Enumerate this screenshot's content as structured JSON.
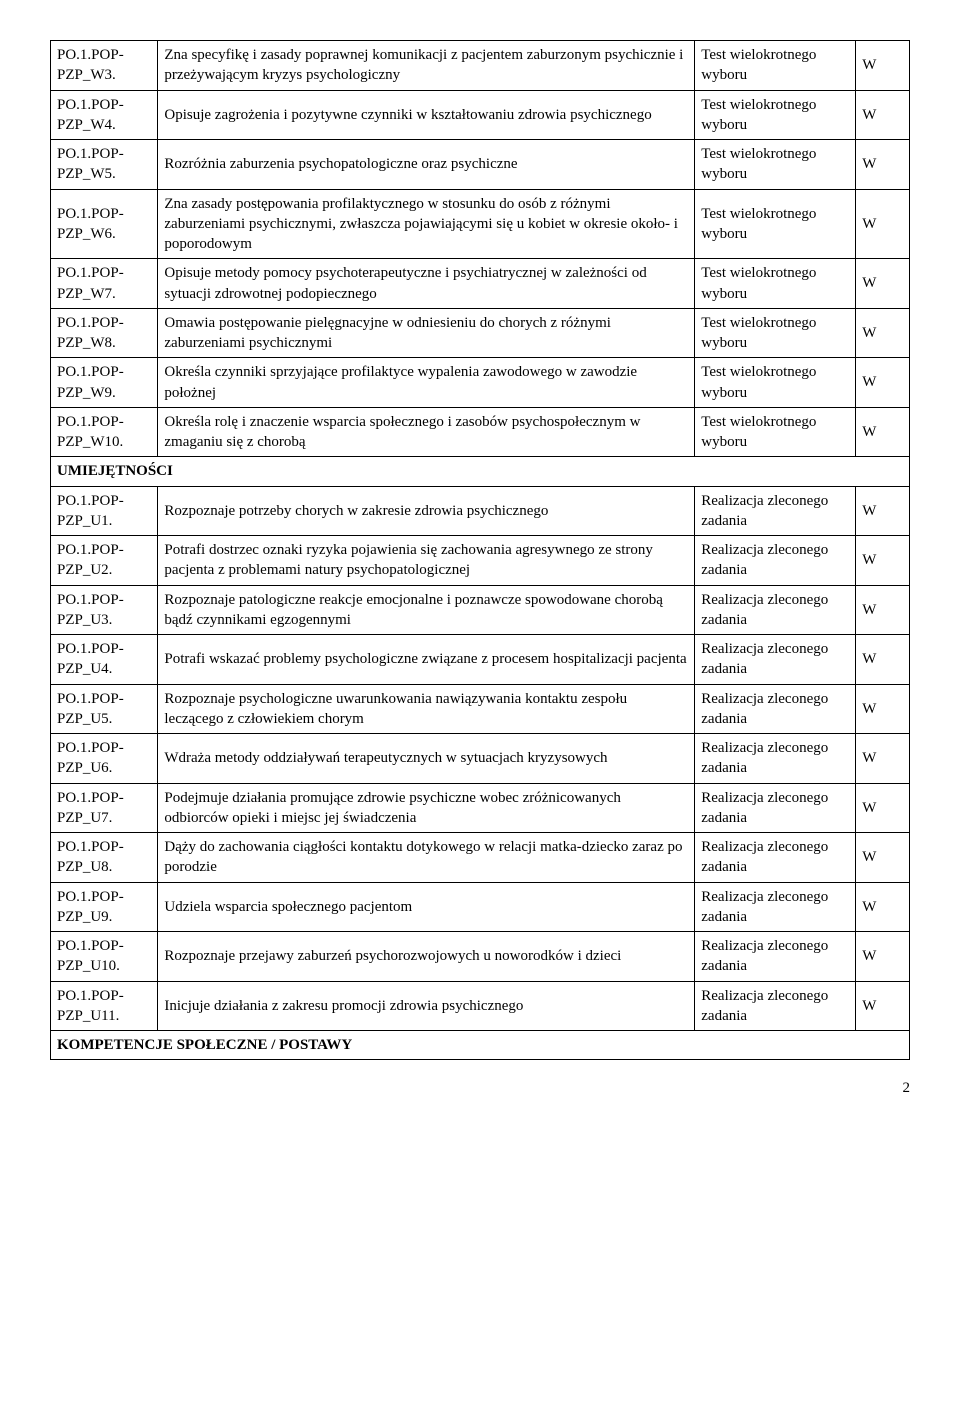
{
  "sections": {
    "skills_header": "UMIEJĘTNOŚCI",
    "competencies_header": "KOMPETENCJE SPOŁECZNE / POSTAWY"
  },
  "test_method": "Test wielokrotnego wyboru",
  "task_method": "Realizacja zleconego zadania",
  "flag": "W",
  "page_number": "2",
  "rows_w": [
    {
      "code": "PO.1.POP-PZP_W3.",
      "desc": "Zna specyfikę i zasady poprawnej komunikacji z pacjentem zaburzonym psychicznie i przeżywającym kryzys psychologiczny"
    },
    {
      "code": "PO.1.POP-PZP_W4.",
      "desc": "Opisuje zagrożenia i pozytywne czynniki w kształtowaniu zdrowia psychicznego"
    },
    {
      "code": "PO.1.POP-PZP_W5.",
      "desc": "Rozróżnia zaburzenia psychopatologiczne oraz psychiczne"
    },
    {
      "code": "PO.1.POP-PZP_W6.",
      "desc": "Zna zasady postępowania profilaktycznego w stosunku do osób z różnymi zaburzeniami psychicznymi, zwłaszcza pojawiającymi się u kobiet w okresie około- i poporodowym"
    },
    {
      "code": "PO.1.POP-PZP_W7.",
      "desc": "Opisuje metody pomocy psychoterapeutyczne i psychiatrycznej w zależności od sytuacji zdrowotnej podopiecznego"
    },
    {
      "code": "PO.1.POP-PZP_W8.",
      "desc": "Omawia postępowanie pielęgnacyjne w odniesieniu do chorych z różnymi zaburzeniami psychicznymi"
    },
    {
      "code": "PO.1.POP-PZP_W9.",
      "desc": "Określa czynniki sprzyjające profilaktyce wypalenia zawodowego w zawodzie położnej"
    },
    {
      "code": "PO.1.POP-PZP_W10.",
      "desc": "Określa rolę i znaczenie wsparcia społecznego i zasobów psychospołecznym w zmaganiu się z chorobą"
    }
  ],
  "rows_u": [
    {
      "code": "PO.1.POP-PZP_U1.",
      "desc": "Rozpoznaje potrzeby chorych w zakresie zdrowia psychicznego"
    },
    {
      "code": "PO.1.POP-PZP_U2.",
      "desc": "Potrafi dostrzec oznaki ryzyka pojawienia się zachowania agresywnego ze strony pacjenta z problemami natury psychopatologicznej"
    },
    {
      "code": "PO.1.POP-PZP_U3.",
      "desc": "Rozpoznaje patologiczne reakcje emocjonalne i poznawcze spowodowane chorobą bądź czynnikami egzogennymi"
    },
    {
      "code": "PO.1.POP-PZP_U4.",
      "desc": "Potrafi wskazać problemy psychologiczne związane z procesem hospitalizacji pacjenta"
    },
    {
      "code": "PO.1.POP-PZP_U5.",
      "desc": "Rozpoznaje psychologiczne uwarunkowania nawiązywania kontaktu zespołu leczącego z człowiekiem chorym"
    },
    {
      "code": "PO.1.POP-PZP_U6.",
      "desc": "Wdraża metody oddziaływań terapeutycznych w sytuacjach kryzysowych"
    },
    {
      "code": "PO.1.POP-PZP_U7.",
      "desc": "Podejmuje działania promujące zdrowie psychiczne wobec zróżnicowanych odbiorców opieki i miejsc jej świadczenia"
    },
    {
      "code": "PO.1.POP-PZP_U8.",
      "desc": "Dąży do zachowania ciągłości kontaktu dotykowego w relacji matka-dziecko zaraz po porodzie"
    },
    {
      "code": "PO.1.POP-PZP_U9.",
      "desc": "Udziela wsparcia społecznego pacjentom"
    },
    {
      "code": "PO.1.POP-PZP_U10.",
      "desc": "Rozpoznaje przejawy zaburzeń psychorozwojowych u noworodków i dzieci"
    },
    {
      "code": "PO.1.POP-PZP_U11.",
      "desc": "Inicjuje działania z zakresu promocji zdrowia psychicznego"
    }
  ]
}
